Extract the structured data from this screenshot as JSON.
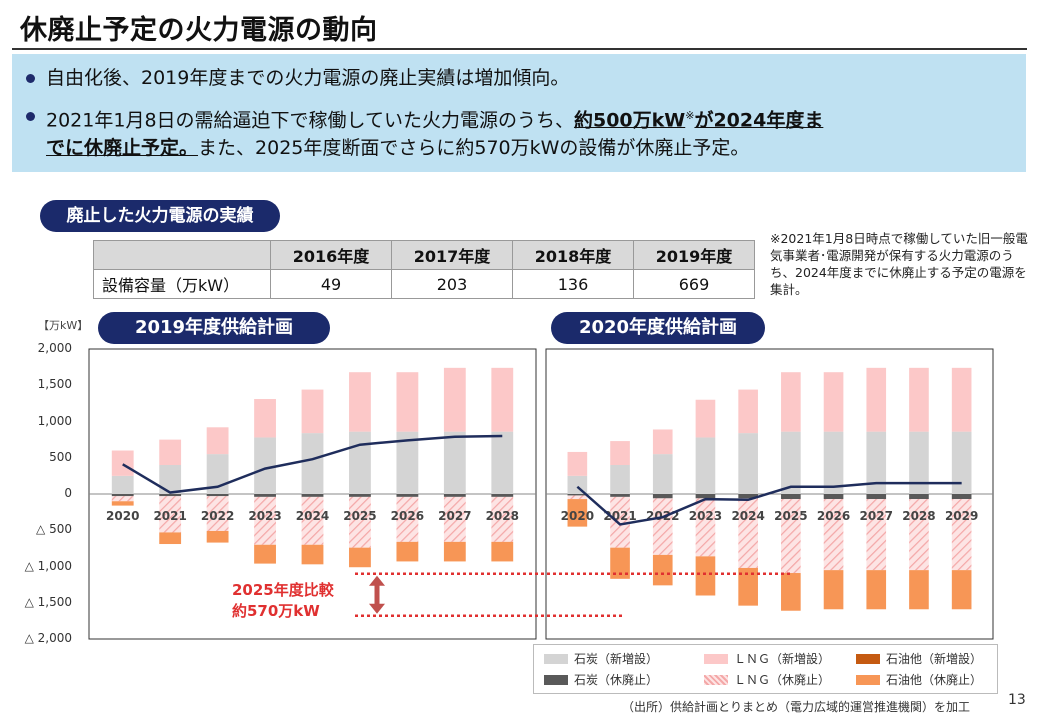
{
  "title": "休廃止予定の火力電源の動向",
  "summary": {
    "bullet1": "自由化後、2019年度までの火力電源の廃止実績は増加傾向。",
    "bullet2_pre": "2021年1月8日の需給逼迫下で稼働していた火力電源のうち、",
    "bullet2_strong1": "約500万kW",
    "bullet2_mark": "※",
    "bullet2_strong2": "が2024年度ま",
    "bullet2_strong3": "でに休廃止予定。",
    "bullet2_post": "また、2025年度断面でさらに約570万kWの設備が休廃止予定。"
  },
  "retired_section": {
    "label": "廃止した火力電源の実績",
    "table": {
      "headers": [
        "2016年度",
        "2017年度",
        "2018年度",
        "2019年度"
      ],
      "row_label": "設備容量（万kW）",
      "values": [
        "49",
        "203",
        "136",
        "669"
      ]
    }
  },
  "footnote": "※2021年1月8日時点で稼働していた旧一般電気事業者･電源開発が保有する火力電源のうち、2024年度までに休廃止する予定の電源を集計。",
  "colors": {
    "coal_new": "#d4d4d4",
    "lng_new": "#fcc8c8",
    "oil_new": "#c55a11",
    "coal_retire": "#595959",
    "lng_retire": "#f4b0b0",
    "oil_retire": "#f79656",
    "line": "#1f2d5c",
    "navy": "#1b2a6b",
    "annotation": "#e03030"
  },
  "chart_data": [
    {
      "type": "bar",
      "title": "2019年度供給計画",
      "ylabel": "【万kW】",
      "ylim": [
        -2000,
        2000
      ],
      "yticks": [
        "2,000",
        "1,500",
        "1,000",
        "500",
        "0",
        "△ 500",
        "△ 1,000",
        "△ 1,500",
        "△ 2,000"
      ],
      "categories": [
        "2020",
        "2021",
        "2022",
        "2023",
        "2024",
        "2025",
        "2026",
        "2027",
        "2028"
      ],
      "series": [
        {
          "name": "石炭（新増設）",
          "key": "coal_new",
          "values": [
            250,
            400,
            550,
            780,
            840,
            860,
            860,
            860,
            860
          ]
        },
        {
          "name": "ＬＮＧ（新増設）",
          "key": "lng_new",
          "values": [
            350,
            350,
            370,
            530,
            600,
            820,
            820,
            880,
            880
          ]
        },
        {
          "name": "石油他（新増設）",
          "key": "oil_new",
          "values": [
            0,
            0,
            0,
            0,
            0,
            0,
            0,
            0,
            0
          ]
        },
        {
          "name": "石炭（休廃止）",
          "key": "coal_retire",
          "values": [
            -30,
            -30,
            -30,
            -40,
            -40,
            -40,
            -40,
            -40,
            -40
          ]
        },
        {
          "name": "ＬＮＧ（休廃止）",
          "key": "lng_retire",
          "values": [
            -70,
            -500,
            -480,
            -660,
            -660,
            -700,
            -620,
            -620,
            -620
          ]
        },
        {
          "name": "石油他（休廃止）",
          "key": "oil_retire",
          "values": [
            -60,
            -160,
            -160,
            -260,
            -270,
            -270,
            -270,
            -270,
            -270
          ]
        }
      ],
      "line": [
        410,
        20,
        100,
        350,
        480,
        680,
        740,
        790,
        800
      ]
    },
    {
      "type": "bar",
      "title": "2020年度供給計画",
      "ylim": [
        -2000,
        2000
      ],
      "categories": [
        "2020",
        "2021",
        "2022",
        "2023",
        "2024",
        "2025",
        "2026",
        "2027",
        "2028",
        "2029"
      ],
      "series": [
        {
          "name": "石炭（新増設）",
          "key": "coal_new",
          "values": [
            250,
            400,
            550,
            780,
            840,
            860,
            860,
            860,
            860,
            860
          ]
        },
        {
          "name": "ＬＮＧ（新増設）",
          "key": "lng_new",
          "values": [
            330,
            330,
            340,
            520,
            600,
            820,
            820,
            880,
            880,
            880
          ]
        },
        {
          "name": "石油他（新増設）",
          "key": "oil_new",
          "values": [
            0,
            0,
            0,
            0,
            0,
            0,
            0,
            0,
            0,
            0
          ]
        },
        {
          "name": "石炭（休廃止）",
          "key": "coal_retire",
          "values": [
            -20,
            -40,
            -60,
            -60,
            -60,
            -70,
            -70,
            -70,
            -70,
            -70
          ]
        },
        {
          "name": "ＬＮＧ（休廃止）",
          "key": "lng_retire",
          "values": [
            -50,
            -700,
            -780,
            -800,
            -960,
            -1020,
            -980,
            -980,
            -980,
            -980
          ]
        },
        {
          "name": "石油他（休廃止）",
          "key": "oil_retire",
          "values": [
            -380,
            -430,
            -420,
            -540,
            -520,
            -520,
            -540,
            -540,
            -540,
            -540
          ]
        }
      ],
      "line": [
        100,
        -420,
        -320,
        -70,
        -80,
        100,
        100,
        150,
        150,
        150
      ]
    }
  ],
  "annotation": {
    "line1": "2025年度比較",
    "line2": "約570万kW"
  },
  "source": "（出所）供給計画とりまとめ（電力広域的運営推進機関）を加工",
  "page_number": "13"
}
